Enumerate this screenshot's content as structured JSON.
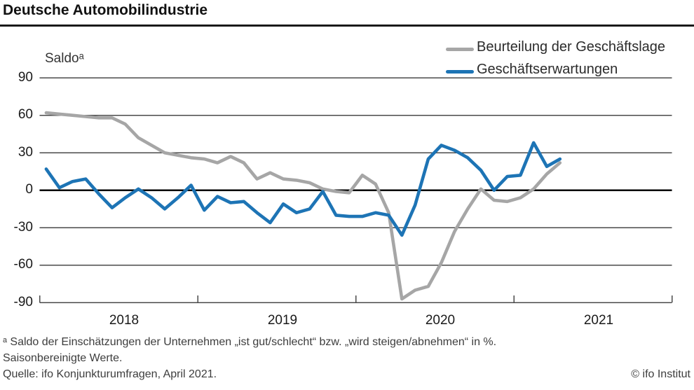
{
  "title": "Deutsche Automobilindustrie",
  "y_axis_title": "Saldoᵃ",
  "legend": {
    "items": [
      {
        "label": "Beurteilung der Geschäftslage",
        "color": "#a6a6a6"
      },
      {
        "label": "Geschäftserwartungen",
        "color": "#1d74b5"
      }
    ]
  },
  "footnotes": {
    "line1": "ᵃ Saldo der Einschätzungen der Unternehmen „ist gut/schlecht“ bzw. „wird steigen/abnehmen“ in %.",
    "line2": "Saisonbereinigte Werte.",
    "line3": "Quelle: ifo Konjunkturumfragen, April 2021.",
    "copyright": "© ifo Institut"
  },
  "chart_data": {
    "type": "line",
    "title": "Deutsche Automobilindustrie",
    "ylabel": "Saldoᵃ",
    "ylim": [
      -90,
      90
    ],
    "y_ticks": [
      90,
      60,
      30,
      0,
      -30,
      -60,
      -90
    ],
    "y_tick_labels": [
      "90",
      "60",
      "30",
      "0",
      "-30",
      "-60",
      "-90"
    ],
    "x_tick_labels": [
      "2018",
      "2019",
      "2020",
      "2021"
    ],
    "grid": "horizontal",
    "legend_position": "top-right",
    "x": [
      "2018-01",
      "2018-02",
      "2018-03",
      "2018-04",
      "2018-05",
      "2018-06",
      "2018-07",
      "2018-08",
      "2018-09",
      "2018-10",
      "2018-11",
      "2018-12",
      "2019-01",
      "2019-02",
      "2019-03",
      "2019-04",
      "2019-05",
      "2019-06",
      "2019-07",
      "2019-08",
      "2019-09",
      "2019-10",
      "2019-11",
      "2019-12",
      "2020-01",
      "2020-02",
      "2020-03",
      "2020-04",
      "2020-05",
      "2020-06",
      "2020-07",
      "2020-08",
      "2020-09",
      "2020-10",
      "2020-11",
      "2020-12",
      "2021-01",
      "2021-02",
      "2021-03",
      "2021-04"
    ],
    "series": [
      {
        "name": "Beurteilung der Geschäftslage",
        "color": "#a6a6a6",
        "values": [
          62,
          61,
          60,
          59,
          58,
          58,
          53,
          42,
          36,
          30,
          28,
          26,
          25,
          22,
          27,
          22,
          9,
          14,
          9,
          8,
          6,
          1,
          -1,
          -2,
          12,
          5,
          -18,
          -87,
          -80,
          -77,
          -58,
          -33,
          -15,
          1,
          -8,
          -9,
          -6,
          1,
          13,
          22
        ]
      },
      {
        "name": "Geschäftserwartungen",
        "color": "#1d74b5",
        "values": [
          17,
          2,
          7,
          9,
          -3,
          -14,
          -6,
          1,
          -6,
          -15,
          -6,
          4,
          -16,
          -5,
          -10,
          -9,
          -18,
          -26,
          -11,
          -18,
          -15,
          -1,
          -20,
          -21,
          -21,
          -18,
          -20,
          -36,
          -12,
          25,
          36,
          32,
          26,
          16,
          0,
          11,
          12,
          38,
          19,
          25
        ]
      }
    ]
  }
}
